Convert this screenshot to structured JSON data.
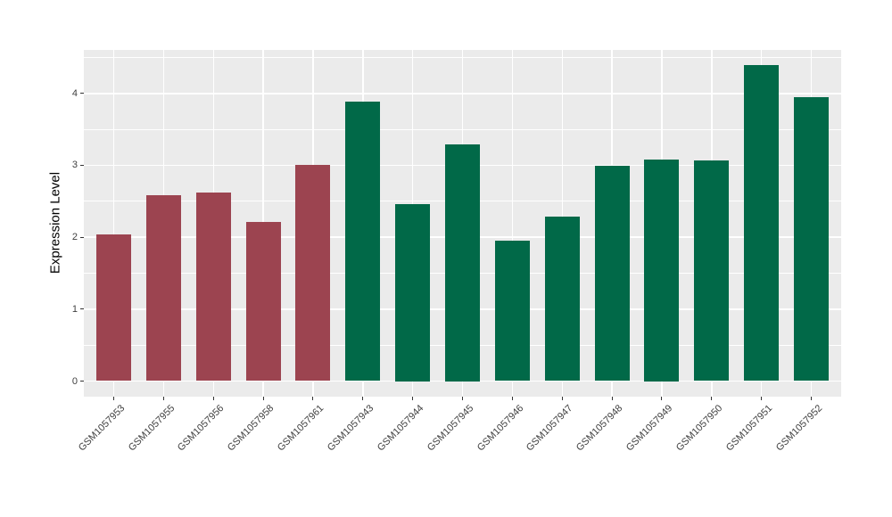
{
  "chart_data": {
    "type": "bar",
    "title": "",
    "xlabel": "",
    "ylabel": "Expression Level",
    "categories": [
      "GSM1057953",
      "GSM1057955",
      "GSM1057956",
      "GSM1057958",
      "GSM1057961",
      "GSM1057943",
      "GSM1057944",
      "GSM1057945",
      "GSM1057946",
      "GSM1057947",
      "GSM1057948",
      "GSM1057949",
      "GSM1057950",
      "GSM1057951",
      "GSM1057952"
    ],
    "values": [
      2.04,
      2.58,
      2.62,
      2.21,
      3.01,
      3.88,
      2.46,
      3.29,
      1.95,
      2.29,
      2.99,
      3.08,
      3.07,
      4.39,
      3.95
    ],
    "bar_colors": [
      "#9C4450",
      "#9C4450",
      "#9C4450",
      "#9C4450",
      "#9C4450",
      "#016948",
      "#016948",
      "#016948",
      "#016948",
      "#016948",
      "#016948",
      "#016948",
      "#016948",
      "#016948",
      "#016948"
    ],
    "group_color_maroon": "#9C4450",
    "group_color_green": "#016948",
    "y_ticks": [
      0,
      1,
      2,
      3,
      4
    ],
    "y_minor_ticks": [
      0.5,
      1.5,
      2.5,
      3.5,
      4.5
    ],
    "ylim": [
      -0.217,
      4.604
    ],
    "grid": true,
    "legend": "none",
    "panel_bg": "#EBEBEB",
    "grid_color": "#FFFFFF",
    "axis_text_color": "#404040"
  }
}
